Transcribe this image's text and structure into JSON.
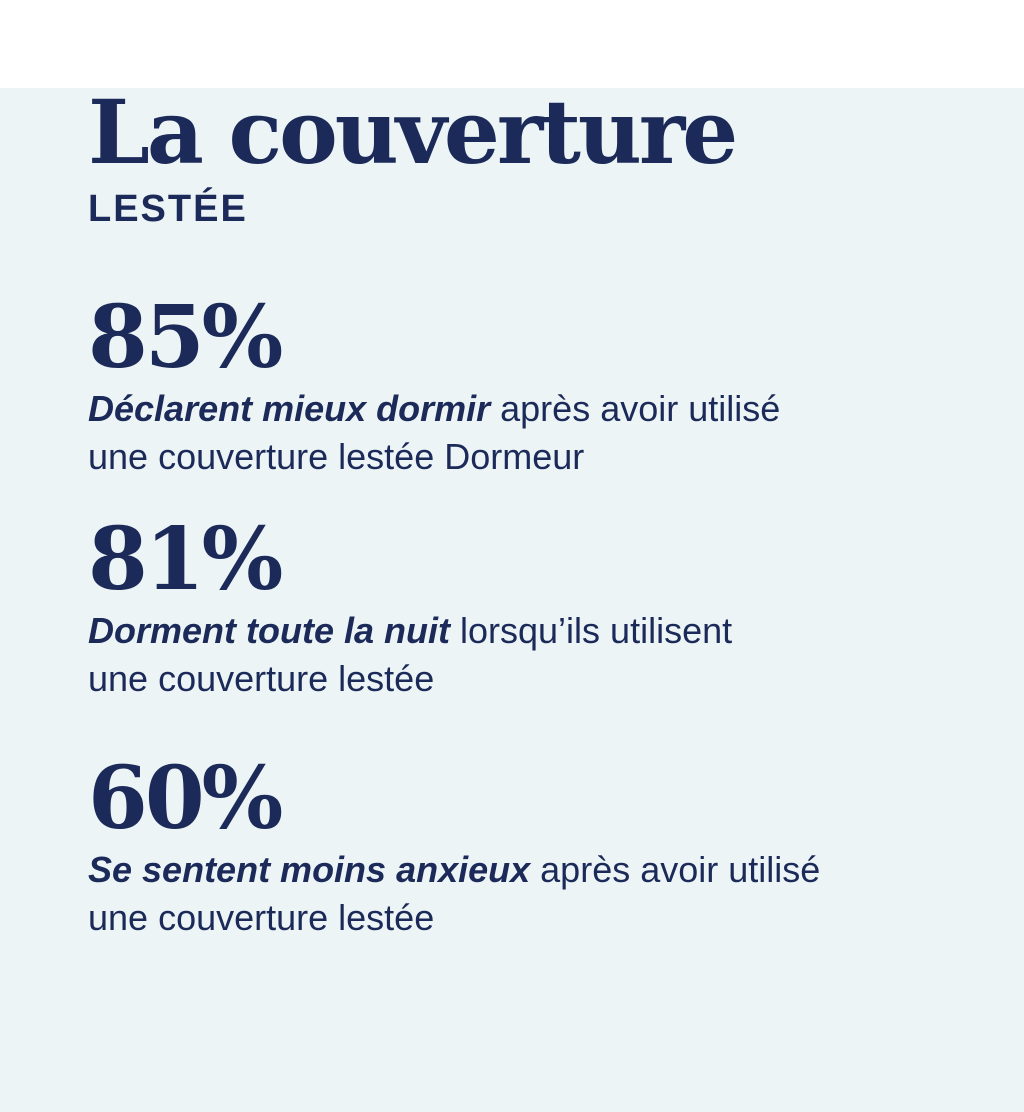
{
  "page": {
    "background_color": "#ecf4f6",
    "text_color": "#1b2a58"
  },
  "header": {
    "title": "La couverture",
    "subtitle": "LESTÉE"
  },
  "stats": [
    {
      "value": "85%",
      "emphasis": "Déclarent mieux dormir",
      "rest": " après avoir utilisé",
      "line2": "une couverture lestée Dormeur"
    },
    {
      "value": "81%",
      "emphasis": "Dorment toute la nuit",
      "rest": " lorsqu’ils utilisent",
      "line2": "une couverture lestée"
    },
    {
      "value": "60%",
      "emphasis": "Se sentent moins anxieux",
      "rest": " après avoir utilisé",
      "line2": "une couverture lestée"
    }
  ]
}
